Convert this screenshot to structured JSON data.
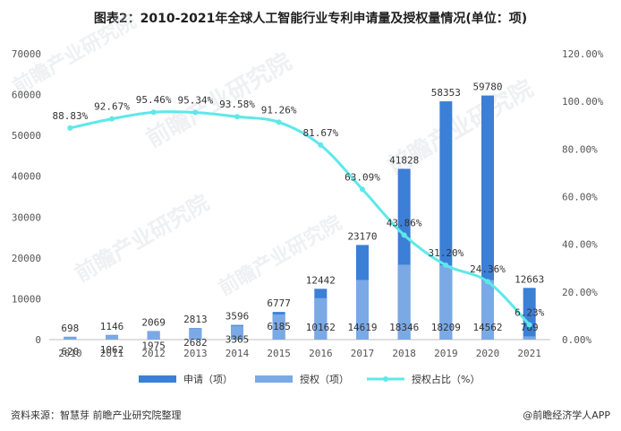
{
  "title": "图表2：2010-2021年全球人工智能行业专利申请量及授权量情况(单位：项)",
  "source": "资料来源：智慧芽 前瞻产业研究院整理",
  "brand": "@前瞻经济学人APP",
  "watermark": "前瞻产业研究院",
  "colors": {
    "applications": "#3b7fd6",
    "grants": "#7aa9e6",
    "share_line": "#5ee8e8"
  },
  "chart_data": {
    "type": "bar",
    "categories": [
      "2010",
      "2011",
      "2012",
      "2013",
      "2014",
      "2015",
      "2016",
      "2017",
      "2018",
      "2019",
      "2020",
      "2021"
    ],
    "series": [
      {
        "name": "申请（项）",
        "kind": "bar",
        "values": [
          698,
          1146,
          2069,
          2813,
          3596,
          6777,
          12442,
          23170,
          41828,
          58353,
          59780,
          12663
        ]
      },
      {
        "name": "授权（项）",
        "kind": "bar",
        "values": [
          620,
          1062,
          1975,
          2682,
          3365,
          6185,
          10162,
          14619,
          18346,
          18209,
          14562,
          789
        ]
      },
      {
        "name": "授权占比（%）",
        "kind": "line",
        "axis": "right",
        "values": [
          88.83,
          92.67,
          95.46,
          95.34,
          93.58,
          91.26,
          81.67,
          63.09,
          43.86,
          31.2,
          24.36,
          6.23
        ]
      }
    ],
    "left_axis": {
      "min": 0,
      "max": 70000,
      "ticks": [
        "0",
        "10000",
        "20000",
        "30000",
        "40000",
        "50000",
        "60000",
        "70000"
      ]
    },
    "right_axis": {
      "min": 0,
      "max": 120,
      "ticks": [
        "0.00%",
        "20.00%",
        "40.00%",
        "60.00%",
        "80.00%",
        "100.00%",
        "120.00%"
      ]
    },
    "share_labels": [
      "88.83%",
      "92.67%",
      "95.46%",
      "95.34%",
      "93.58%",
      "91.26%",
      "81.67%",
      "63.09%",
      "43.86%",
      "31.20%",
      "24.36%",
      "6.23%"
    ],
    "legend": [
      "申请（项）",
      "授权（项）",
      "授权占比（%）"
    ]
  }
}
